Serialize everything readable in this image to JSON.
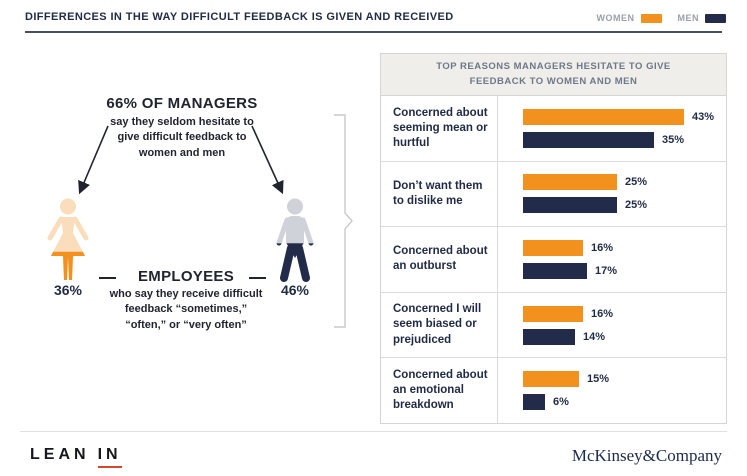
{
  "header": {
    "title": "DIFFERENCES IN THE WAY DIFFICULT FEEDBACK IS GIVEN AND RECEIVED",
    "legend": [
      {
        "label": "WOMEN",
        "color": "#F2911E"
      },
      {
        "label": "MEN",
        "color": "#222C4A"
      }
    ]
  },
  "managers": {
    "headline": "66% OF MANAGERS",
    "sub_lines": [
      "say they seldom hesitate to",
      "give difficult feedback to",
      "women and men"
    ]
  },
  "employees": {
    "headline": "EMPLOYEES",
    "sub_lines": [
      "who say they receive difficult",
      "feedback “sometimes,”",
      "“often,” or “very often”"
    ],
    "women": {
      "label": "36%",
      "value": 36
    },
    "men": {
      "label": "46%",
      "value": 46
    }
  },
  "icons": {
    "woman": "woman-pictogram-icon",
    "man": "man-pictogram-icon"
  },
  "chart_data": {
    "type": "bar",
    "title": "TOP REASONS MANAGERS HESITATE TO GIVE FEEDBACK TO WOMEN AND MEN",
    "title_lines": [
      "TOP REASONS MANAGERS HESITATE TO GIVE",
      "FEEDBACK TO WOMEN AND MEN"
    ],
    "categories": [
      "Concerned about seeming mean or hurtful",
      "Don’t want them to dislike me",
      "Concerned about an outburst",
      "Concerned I will seem biased or prejudiced",
      "Concerned about an emotional breakdown"
    ],
    "series": [
      {
        "name": "Women",
        "color": "#F2911E",
        "values": [
          43,
          25,
          16,
          16,
          15
        ]
      },
      {
        "name": "Men",
        "color": "#222C4A",
        "values": [
          35,
          25,
          17,
          14,
          6
        ]
      }
    ],
    "unit": "%",
    "xlim": [
      0,
      45
    ],
    "legend_position": "top-right",
    "grid": false
  },
  "colors": {
    "women": "#F2911E",
    "women_light": "#FADDBB",
    "men": "#222C4A",
    "men_light": "#CFD2D9"
  },
  "footer": {
    "lean": "LEAN",
    "in": "IN",
    "mckinsey": "McKinsey&Company"
  }
}
